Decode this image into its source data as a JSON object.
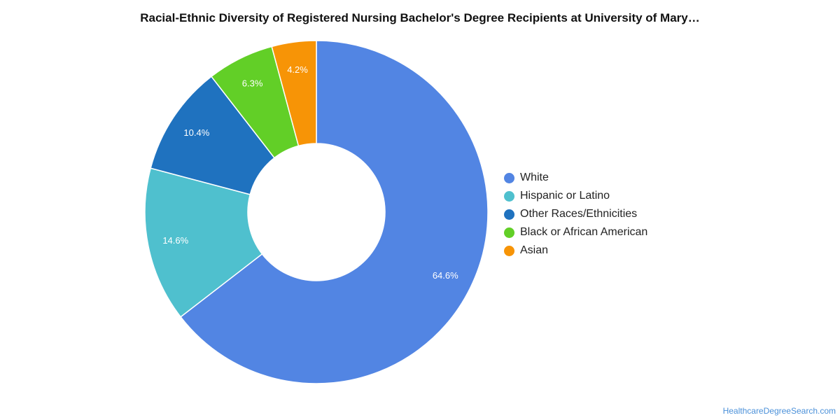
{
  "chart_data": {
    "type": "pie",
    "title": "Racial-Ethnic Diversity of Registered Nursing Bachelor's Degree Recipients at University of Mary…",
    "categories": [
      "White",
      "Hispanic or Latino",
      "Other Races/Ethnicities",
      "Black or African American",
      "Asian"
    ],
    "values": [
      64.6,
      14.6,
      10.4,
      6.3,
      4.2
    ],
    "value_labels": [
      "64.6%",
      "14.6%",
      "10.4%",
      "6.3%",
      "4.2%"
    ],
    "colors": [
      "#5285e3",
      "#4fc0ce",
      "#1f72bf",
      "#62cf27",
      "#f79406"
    ],
    "donut": true,
    "legend_position": "right"
  },
  "source_label": "HealthcareDegreeSearch.com"
}
